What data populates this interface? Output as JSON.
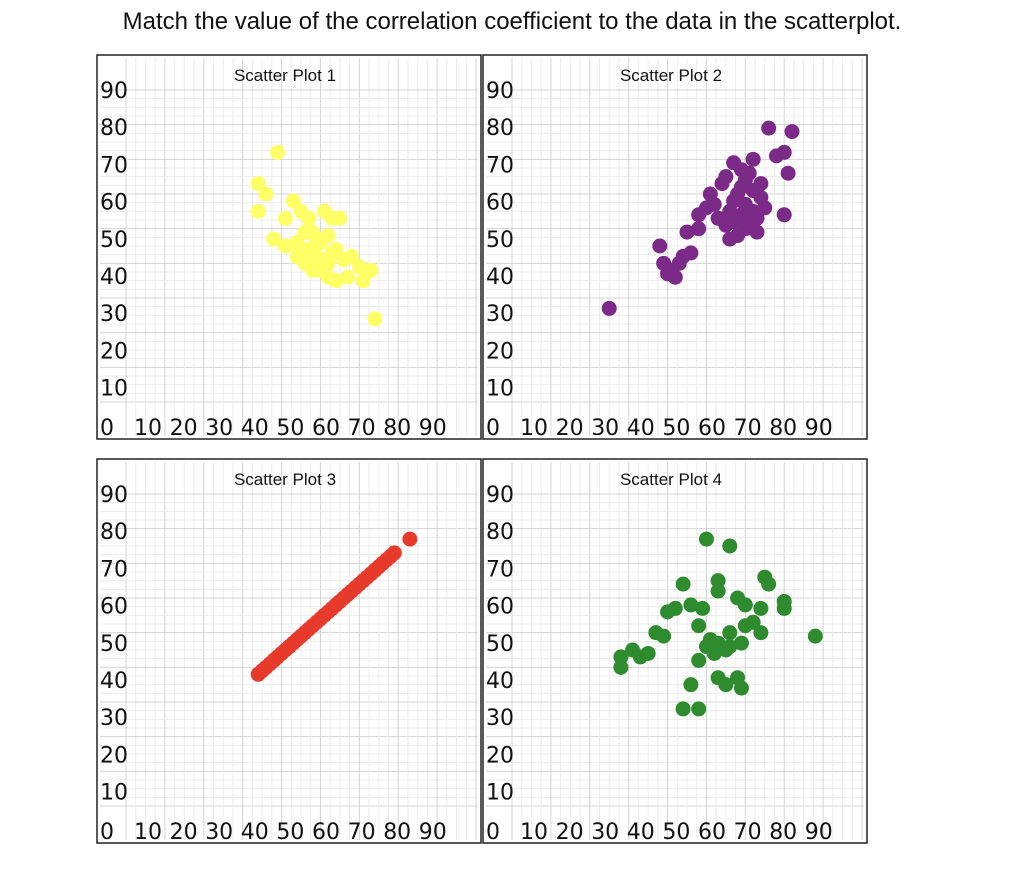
{
  "page_title": "Match the value of the correlation coefficient to the data in the scatterplot.",
  "chart_data": [
    {
      "type": "scatter",
      "title": "Scatter Plot 1",
      "color": "#ffff66",
      "xlim": [
        0,
        90
      ],
      "ylim": [
        0,
        90
      ],
      "x_ticks": [
        "0",
        "10",
        "20",
        "30",
        "40",
        "50",
        "60",
        "70",
        "80",
        "90"
      ],
      "y_ticks": [
        "10",
        "20",
        "30",
        "40",
        "50",
        "60",
        "70",
        "80",
        "90"
      ],
      "x_tick_label_text": "0 1020304050607080090",
      "grid": true,
      "points": [
        [
          39,
          72
        ],
        [
          34,
          63
        ],
        [
          36,
          60
        ],
        [
          34,
          55
        ],
        [
          43,
          58
        ],
        [
          41,
          53
        ],
        [
          45,
          55
        ],
        [
          47,
          53
        ],
        [
          51,
          55
        ],
        [
          53,
          53
        ],
        [
          55,
          53
        ],
        [
          38,
          47
        ],
        [
          41,
          45
        ],
        [
          44,
          46
        ],
        [
          46,
          49
        ],
        [
          48,
          49
        ],
        [
          49,
          47
        ],
        [
          50,
          46
        ],
        [
          52,
          48
        ],
        [
          47,
          44
        ],
        [
          49,
          42
        ],
        [
          51,
          41
        ],
        [
          53,
          43
        ],
        [
          44,
          42
        ],
        [
          46,
          40
        ],
        [
          48,
          38
        ],
        [
          50,
          38
        ],
        [
          52,
          40
        ],
        [
          54,
          44
        ],
        [
          56,
          41
        ],
        [
          58,
          42
        ],
        [
          60,
          39
        ],
        [
          52,
          36
        ],
        [
          54,
          35
        ],
        [
          57,
          36
        ],
        [
          61,
          35
        ],
        [
          63,
          38
        ],
        [
          64,
          24
        ]
      ]
    },
    {
      "type": "scatter",
      "title": "Scatter Plot 2",
      "color": "#7b2a88",
      "xlim": [
        0,
        90
      ],
      "ylim": [
        0,
        90
      ],
      "x_ticks": [
        "0",
        "10",
        "20",
        "30",
        "40",
        "50",
        "60",
        "70",
        "80",
        "90"
      ],
      "y_ticks": [
        "10",
        "20",
        "30",
        "40",
        "50",
        "60",
        "70",
        "80",
        "90"
      ],
      "x_tick_label_text": "0 1020304050607080090",
      "grid": true,
      "points": [
        [
          25,
          27
        ],
        [
          38,
          45
        ],
        [
          39,
          40
        ],
        [
          41,
          38
        ],
        [
          42,
          36
        ],
        [
          40,
          37
        ],
        [
          43,
          40
        ],
        [
          44,
          42
        ],
        [
          46,
          43
        ],
        [
          45,
          49
        ],
        [
          48,
          50
        ],
        [
          48,
          54
        ],
        [
          50,
          56
        ],
        [
          51,
          60
        ],
        [
          52,
          57
        ],
        [
          54,
          63
        ],
        [
          55,
          65
        ],
        [
          53,
          53
        ],
        [
          55,
          51
        ],
        [
          56,
          55
        ],
        [
          57,
          58
        ],
        [
          58,
          60
        ],
        [
          59,
          62
        ],
        [
          60,
          64
        ],
        [
          61,
          66
        ],
        [
          56,
          47
        ],
        [
          58,
          48
        ],
        [
          60,
          50
        ],
        [
          61,
          52
        ],
        [
          62,
          55
        ],
        [
          57,
          69
        ],
        [
          59,
          67
        ],
        [
          62,
          70
        ],
        [
          64,
          63
        ],
        [
          65,
          56
        ],
        [
          66,
          79
        ],
        [
          68,
          71
        ],
        [
          70,
          72
        ],
        [
          71,
          66
        ],
        [
          72,
          78
        ],
        [
          70,
          54
        ],
        [
          63,
          53
        ],
        [
          59,
          54
        ],
        [
          64,
          59
        ],
        [
          62,
          61
        ],
        [
          57,
          52
        ],
        [
          60,
          57
        ],
        [
          63,
          49
        ]
      ]
    },
    {
      "type": "scatter",
      "title": "Scatter Plot 3",
      "color": "#e83a2a",
      "xlim": [
        0,
        90
      ],
      "ylim": [
        0,
        90
      ],
      "x_ticks": [
        "0",
        "10",
        "20",
        "30",
        "40",
        "50",
        "60",
        "70",
        "80",
        "90"
      ],
      "y_ticks": [
        "10",
        "20",
        "30",
        "40",
        "50",
        "60",
        "70",
        "80",
        "90"
      ],
      "x_tick_label_text": "0 1020304050607080090",
      "grid": true,
      "points": [
        [
          34,
          38
        ],
        [
          35,
          39
        ],
        [
          36,
          40
        ],
        [
          37,
          41
        ],
        [
          38,
          42
        ],
        [
          39,
          43
        ],
        [
          40,
          44
        ],
        [
          41,
          45
        ],
        [
          42,
          46
        ],
        [
          43,
          47
        ],
        [
          44,
          48
        ],
        [
          45,
          49
        ],
        [
          46,
          50
        ],
        [
          47,
          51
        ],
        [
          48,
          52
        ],
        [
          49,
          53
        ],
        [
          50,
          54
        ],
        [
          51,
          55
        ],
        [
          52,
          56
        ],
        [
          53,
          57
        ],
        [
          54,
          58
        ],
        [
          55,
          59
        ],
        [
          56,
          60
        ],
        [
          57,
          61
        ],
        [
          58,
          62
        ],
        [
          59,
          63
        ],
        [
          60,
          64
        ],
        [
          61,
          65
        ],
        [
          62,
          66
        ],
        [
          63,
          67
        ],
        [
          64,
          68
        ],
        [
          65,
          69
        ],
        [
          66,
          70
        ],
        [
          67,
          71
        ],
        [
          68,
          72
        ],
        [
          69,
          73
        ],
        [
          73,
          77
        ]
      ]
    },
    {
      "type": "scatter",
      "title": "Scatter Plot 4",
      "color": "#2e8b2e",
      "xlim": [
        0,
        90
      ],
      "ylim": [
        0,
        90
      ],
      "x_ticks": [
        "0",
        "10",
        "20",
        "30",
        "40",
        "50",
        "60",
        "70",
        "80",
        "90"
      ],
      "y_ticks": [
        "10",
        "20",
        "30",
        "40",
        "50",
        "60",
        "70",
        "80",
        "90"
      ],
      "x_tick_label_text": "0 1020304050607080090",
      "grid": true,
      "points": [
        [
          50,
          77
        ],
        [
          56,
          75
        ],
        [
          44,
          64
        ],
        [
          53,
          65
        ],
        [
          65,
          66
        ],
        [
          66,
          64
        ],
        [
          42,
          57
        ],
        [
          46,
          58
        ],
        [
          49,
          57
        ],
        [
          53,
          62
        ],
        [
          58,
          60
        ],
        [
          60,
          58
        ],
        [
          64,
          57
        ],
        [
          70,
          59
        ],
        [
          70,
          57
        ],
        [
          40,
          56
        ],
        [
          37,
          50
        ],
        [
          39,
          49
        ],
        [
          48,
          52
        ],
        [
          51,
          48
        ],
        [
          53,
          47
        ],
        [
          56,
          50
        ],
        [
          60,
          52
        ],
        [
          62,
          53
        ],
        [
          64,
          50
        ],
        [
          59,
          47
        ],
        [
          55,
          45
        ],
        [
          50,
          46
        ],
        [
          48,
          42
        ],
        [
          52,
          44
        ],
        [
          56,
          46
        ],
        [
          28,
          43
        ],
        [
          31,
          45
        ],
        [
          33,
          43
        ],
        [
          35,
          44
        ],
        [
          28,
          40
        ],
        [
          46,
          35
        ],
        [
          53,
          37
        ],
        [
          55,
          35
        ],
        [
          58,
          37
        ],
        [
          59,
          34
        ],
        [
          44,
          28
        ],
        [
          48,
          28
        ],
        [
          78,
          49
        ]
      ]
    }
  ]
}
